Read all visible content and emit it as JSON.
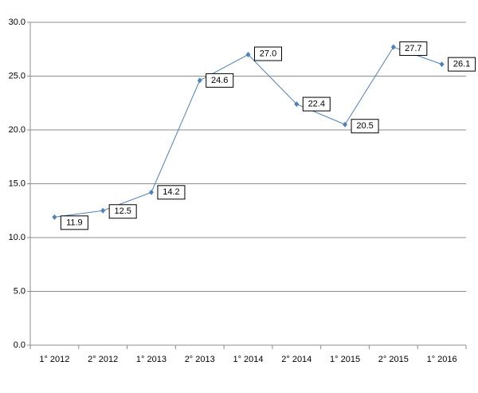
{
  "chart_data": {
    "type": "line",
    "categories": [
      "1° 2012",
      "2° 2012",
      "1° 2013",
      "2° 2013",
      "1° 2014",
      "2° 2014",
      "1° 2015",
      "2° 2015",
      "1° 2016"
    ],
    "series": [
      {
        "color": "#4f81bd",
        "values": [
          11.9,
          12.5,
          14.2,
          24.6,
          27.0,
          22.4,
          20.5,
          27.7,
          26.1
        ],
        "value_labels": [
          "11.9",
          "12.5",
          "14.2",
          "24.6",
          "27.0",
          "22.4",
          "20.5",
          "27.7",
          "26.1"
        ]
      }
    ],
    "ylim": [
      0,
      30
    ],
    "yticks": [
      {
        "value": 0,
        "label": "0.0"
      },
      {
        "value": 5,
        "label": "5.0"
      },
      {
        "value": 10,
        "label": "10.0"
      },
      {
        "value": 15,
        "label": "15.0"
      },
      {
        "value": 20,
        "label": "20.0"
      },
      {
        "value": 25,
        "label": "25.0"
      },
      {
        "value": 30,
        "label": "30.0"
      }
    ],
    "grid": true
  }
}
